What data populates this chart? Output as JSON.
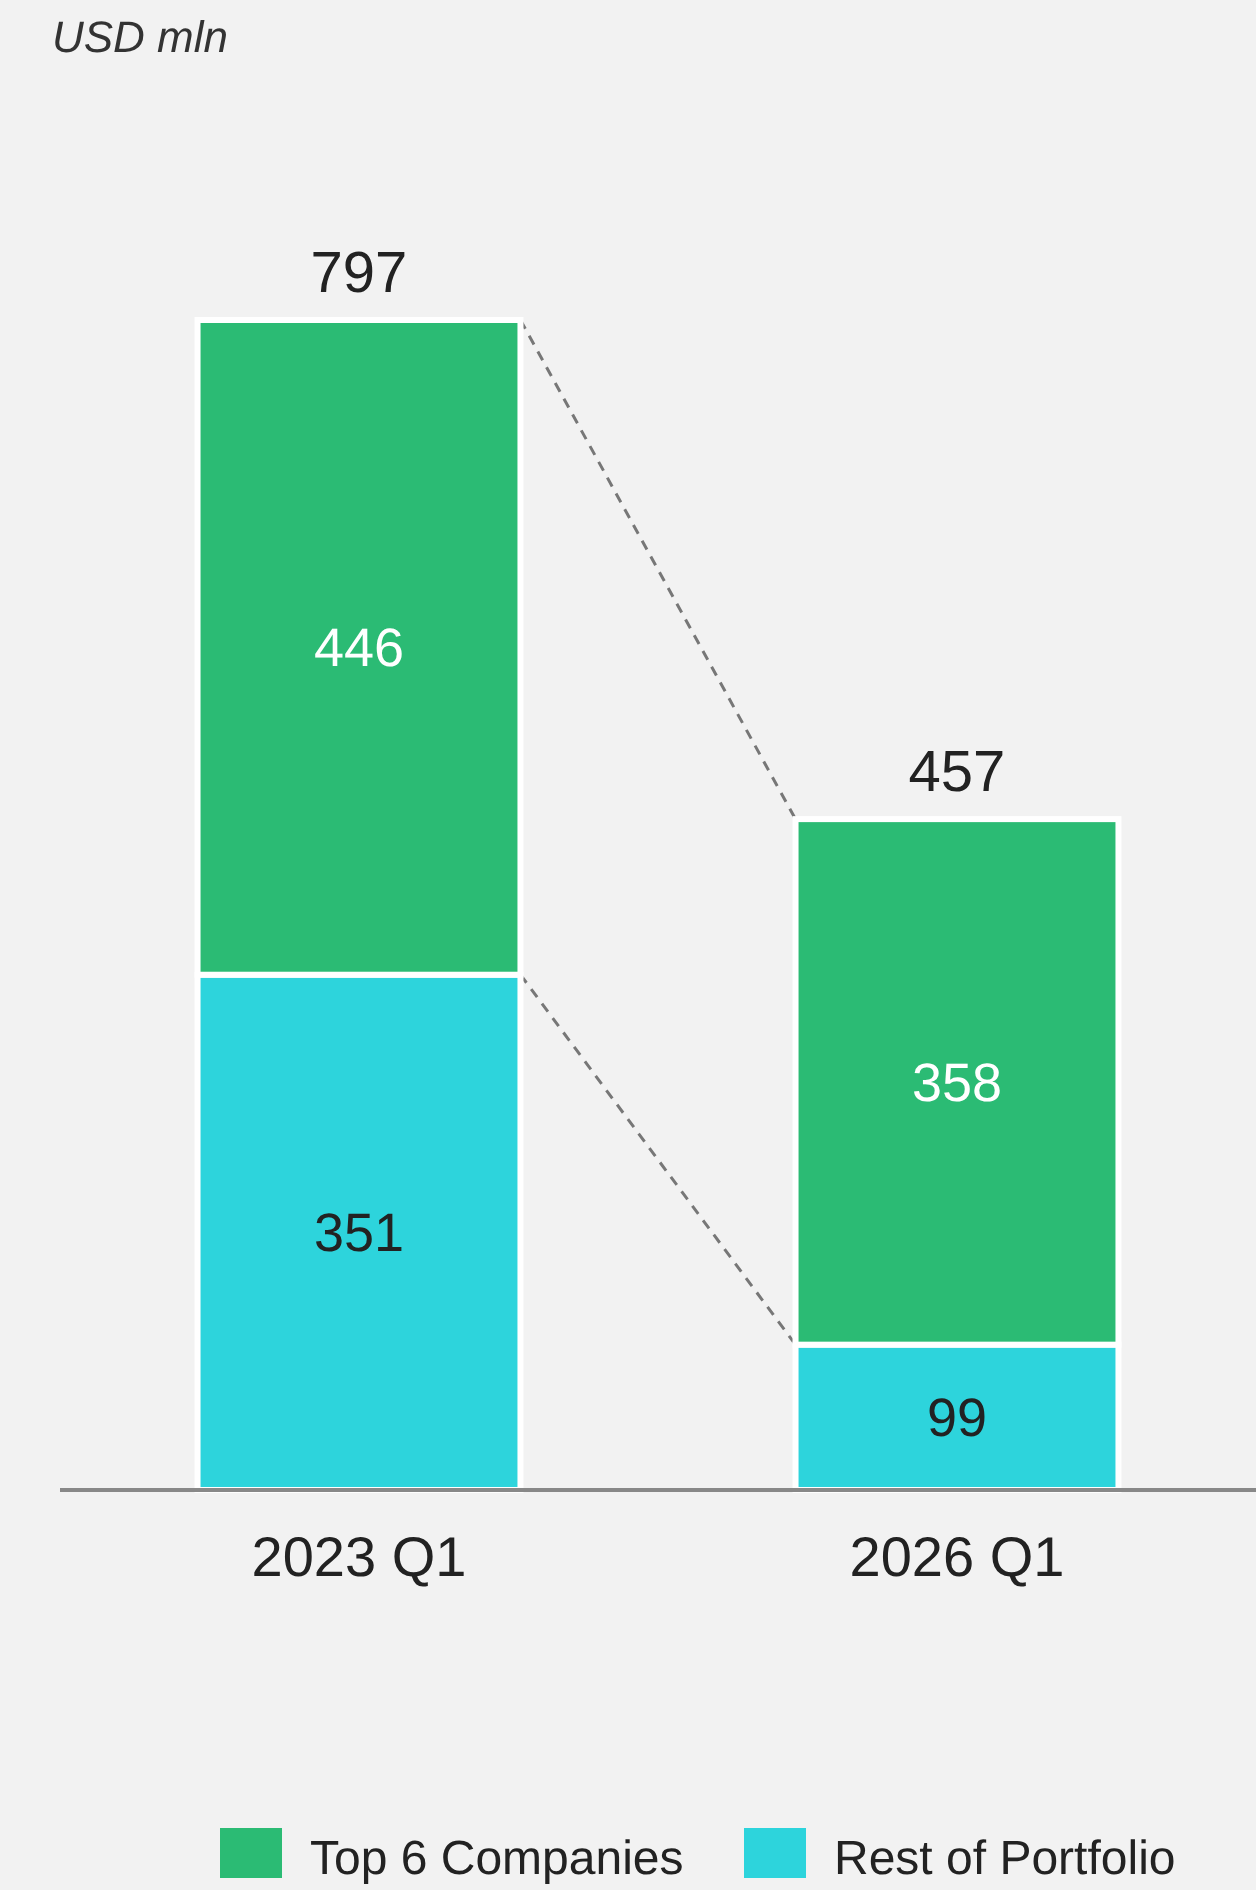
{
  "chart_data": {
    "type": "bar",
    "annotations": [
      "USD mln"
    ],
    "categories": [
      "2023 Q1",
      "2026 Q1"
    ],
    "stacked": true,
    "series": [
      {
        "name": "Rest of Portfolio",
        "color": "#2dd4dc",
        "values": [
          351,
          99
        ]
      },
      {
        "name": "Top 6 Companies",
        "color": "#2bbb74",
        "values": [
          446,
          358
        ]
      }
    ],
    "data_labels": true,
    "totals": [
      "797",
      "457"
    ],
    "legend": "bottom"
  }
}
